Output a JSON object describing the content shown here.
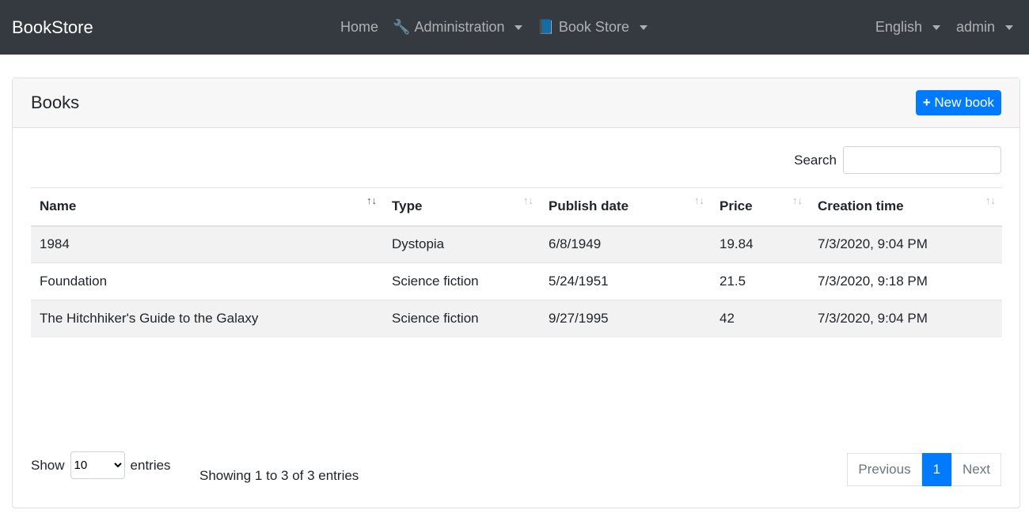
{
  "nav": {
    "brand": "BookStore",
    "home": "Home",
    "administration": "Administration",
    "book_store": "Book Store",
    "language": "English",
    "user": "admin"
  },
  "card": {
    "title": "Books",
    "new_button": "New book"
  },
  "search": {
    "label": "Search",
    "value": ""
  },
  "table": {
    "columns": [
      "Name",
      "Type",
      "Publish date",
      "Price",
      "Creation time"
    ],
    "rows": [
      [
        "1984",
        "Dystopia",
        "6/8/1949",
        "19.84",
        "7/3/2020, 9:04 PM"
      ],
      [
        "Foundation",
        "Science fiction",
        "5/24/1951",
        "21.5",
        "7/3/2020, 9:18 PM"
      ],
      [
        "The Hitchhiker's Guide to the Galaxy",
        "Science fiction",
        "9/27/1995",
        "42",
        "7/3/2020, 9:04 PM"
      ]
    ]
  },
  "footer": {
    "show": "Show",
    "page_size": "10",
    "entries": "entries",
    "info": "Showing 1 to 3 of 3 entries",
    "previous": "Previous",
    "page": "1",
    "next": "Next"
  },
  "colors": {
    "navbar": "#343a40",
    "primary": "#007bff"
  }
}
